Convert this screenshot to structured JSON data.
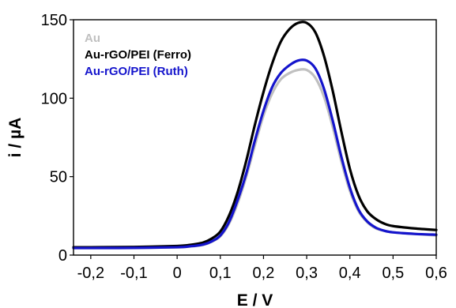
{
  "chart_data": {
    "type": "line",
    "xlabel": "E / V",
    "ylabel": "i / µA",
    "xlim": [
      -0.24,
      0.6
    ],
    "ylim": [
      0,
      150
    ],
    "xticks": [
      -0.2,
      -0.1,
      0,
      0.1,
      0.2,
      0.3,
      0.4,
      0.5,
      0.6
    ],
    "xtick_labels": [
      "-0,2",
      "-0,1",
      "0",
      "0,1",
      "0,2",
      "0,3",
      "0,4",
      "0,5",
      "0,6"
    ],
    "yticks": [
      0,
      50,
      100,
      150
    ],
    "ytick_labels": [
      "0",
      "50",
      "100",
      "150"
    ],
    "grid": false,
    "legend_position": "top-left",
    "series": [
      {
        "name": "Au",
        "color": "#c0c0c0",
        "x": [
          -0.24,
          -0.2,
          -0.1,
          0,
          0.03,
          0.06,
          0.08,
          0.1,
          0.12,
          0.14,
          0.16,
          0.18,
          0.2,
          0.22,
          0.24,
          0.26,
          0.28,
          0.3,
          0.32,
          0.34,
          0.36,
          0.38,
          0.4,
          0.42,
          0.44,
          0.46,
          0.48,
          0.5,
          0.55,
          0.6
        ],
        "y": [
          4.5,
          4.5,
          4.6,
          5,
          5.5,
          6.5,
          8.5,
          12,
          20,
          33,
          50,
          70,
          89,
          103,
          112,
          116,
          118,
          118,
          113,
          101,
          82,
          60,
          41,
          28,
          21,
          17,
          15.5,
          14.5,
          13.5,
          12.5
        ]
      },
      {
        "name": "Au-rGO/PEI (Ferro)",
        "color": "#000000",
        "x": [
          -0.24,
          -0.2,
          -0.1,
          0,
          0.03,
          0.06,
          0.08,
          0.1,
          0.12,
          0.14,
          0.16,
          0.18,
          0.2,
          0.22,
          0.24,
          0.26,
          0.28,
          0.3,
          0.32,
          0.34,
          0.36,
          0.38,
          0.4,
          0.42,
          0.44,
          0.46,
          0.48,
          0.5,
          0.55,
          0.6
        ],
        "y": [
          5,
          5,
          5.2,
          5.8,
          6.5,
          8,
          10.5,
          15,
          25,
          40,
          60,
          83,
          104,
          122,
          136,
          144,
          148,
          148,
          142,
          127,
          105,
          79,
          55,
          38,
          28,
          23,
          20,
          18.5,
          17,
          16
        ]
      },
      {
        "name": "Au-rGO/PEI (Ruth)",
        "color": "#1414cc",
        "x": [
          -0.24,
          -0.2,
          -0.1,
          0,
          0.03,
          0.06,
          0.08,
          0.1,
          0.12,
          0.14,
          0.16,
          0.18,
          0.2,
          0.22,
          0.24,
          0.26,
          0.28,
          0.3,
          0.32,
          0.34,
          0.36,
          0.38,
          0.4,
          0.42,
          0.44,
          0.46,
          0.48,
          0.5,
          0.55,
          0.6
        ],
        "y": [
          4.5,
          4.5,
          4.6,
          5,
          5.6,
          6.7,
          8.7,
          12.5,
          21,
          35,
          52,
          73,
          92,
          107,
          116,
          121,
          124,
          124,
          119,
          106,
          86,
          63,
          43,
          29,
          21.5,
          17.5,
          15.5,
          14.5,
          13.5,
          13
        ]
      }
    ]
  }
}
